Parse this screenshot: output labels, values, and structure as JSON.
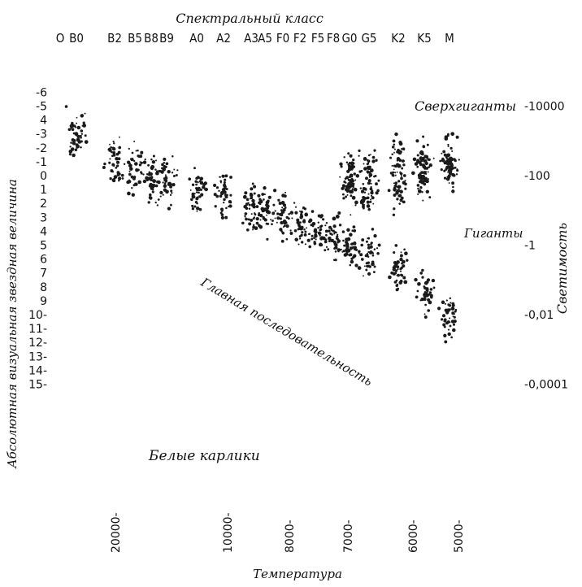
{
  "chart_data": {
    "type": "scatter",
    "title": "Спектральный класс",
    "spectral_classes": [
      "O",
      "B0",
      "B2",
      "B5",
      "B8",
      "B9",
      "A0",
      "A2",
      "A3",
      "A5",
      "F0",
      "F2",
      "F5",
      "F8",
      "G0",
      "G5",
      "K2",
      "K5",
      "M"
    ],
    "xlabel": "Температура",
    "x_ticks": [
      "20000-",
      "10000-",
      "8000-",
      "7000-",
      "6000-",
      "5000-"
    ],
    "ylabel_left": "Абсолютная визуальная звездная величина",
    "y_left_ticks": [
      "-6",
      "-5",
      "4",
      "-3",
      "-2",
      "-1",
      "0",
      "1",
      "2",
      "3",
      "4",
      "5",
      "6",
      "7",
      "8",
      "9",
      "10-",
      "11-",
      "12-",
      "13-",
      "14-",
      "15-"
    ],
    "ylabel_right": "Светимость",
    "y_right_ticks": [
      "-10000",
      "-100",
      "-1",
      "-0,01",
      "-0,0001"
    ],
    "annotations": [
      "Сверхгиганты",
      "Гиганты",
      "Главная последовательность",
      "Белые карлики"
    ],
    "ylim": [
      15,
      -6
    ],
    "series": [
      {
        "name": "Главная последовательность",
        "points": [
          [
            "B0",
            -3
          ],
          [
            "B2",
            -1.2
          ],
          [
            "B5",
            -0.5
          ],
          [
            "B8",
            0.2
          ],
          [
            "B9",
            0.4
          ],
          [
            "A0",
            0.9
          ],
          [
            "A2",
            1.6
          ],
          [
            "A3",
            2.3
          ],
          [
            "A5",
            2.5
          ],
          [
            "F0",
            3.0
          ],
          [
            "F2",
            3.5
          ],
          [
            "F5",
            4.0
          ],
          [
            "F8",
            4.6
          ],
          [
            "G0",
            5.1
          ],
          [
            "G5",
            5.8
          ],
          [
            "K2",
            7.0
          ],
          [
            "K5",
            8.4
          ],
          [
            "M",
            10.2
          ]
        ]
      },
      {
        "name": "Гиганты",
        "points": [
          [
            "G0",
            1.0
          ],
          [
            "G5",
            1.5
          ],
          [
            "K2",
            0.8
          ],
          [
            "K5",
            0.2
          ],
          [
            "M",
            -0.3
          ]
        ]
      },
      {
        "name": "Сверхгиганты",
        "points": [
          [
            "G0",
            -0.3
          ],
          [
            "G5",
            -0.8
          ],
          [
            "K2",
            -1.2
          ],
          [
            "K5",
            -1.0
          ],
          [
            "M",
            -1.5
          ]
        ]
      }
    ],
    "grid": false,
    "legend": "none"
  }
}
